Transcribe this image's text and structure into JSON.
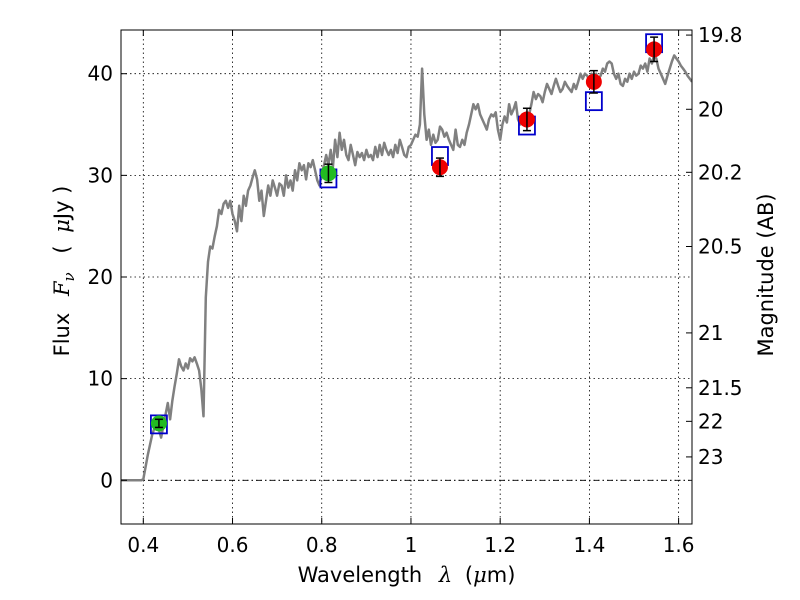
{
  "chart_data": {
    "type": "scatter",
    "xlabel": "Wavelength",
    "xlabel_symbol": "λ",
    "xlabel_unit_open": "(",
    "xlabel_unit_mu": "μ",
    "xlabel_unit_rest": "m)",
    "ylabel": "Flux",
    "ylabel_symbol": "F",
    "ylabel_sub": "ν",
    "ylabel_unit_open": "(",
    "ylabel_unit_mu": "μ",
    "ylabel_unit_rest": "Jy )",
    "y2label": "Magnitude (AB)",
    "xlim": [
      0.35,
      1.63
    ],
    "ylim": [
      -4.3,
      44.3
    ],
    "xticks": [
      {
        "value": 0.4,
        "label": "0.4"
      },
      {
        "value": 0.6,
        "label": "0.6"
      },
      {
        "value": 0.8,
        "label": "0.8"
      },
      {
        "value": 1.0,
        "label": "1"
      },
      {
        "value": 1.2,
        "label": "1.2"
      },
      {
        "value": 1.4,
        "label": "1.4"
      },
      {
        "value": 1.6,
        "label": "1.6"
      }
    ],
    "yticks": [
      {
        "value": 0,
        "label": "0"
      },
      {
        "value": 10,
        "label": "10"
      },
      {
        "value": 20,
        "label": "20"
      },
      {
        "value": 30,
        "label": "30"
      },
      {
        "value": 40,
        "label": "40"
      }
    ],
    "y2ticks": [
      {
        "flux": 43.8,
        "label": "19.8"
      },
      {
        "flux": 36.5,
        "label": "20"
      },
      {
        "flux": 30.3,
        "label": "20.2"
      },
      {
        "flux": 23.0,
        "label": "20.5"
      },
      {
        "flux": 14.5,
        "label": "21"
      },
      {
        "flux": 9.1,
        "label": "21.5"
      },
      {
        "flux": 5.8,
        "label": "22"
      },
      {
        "flux": 2.3,
        "label": "23"
      }
    ],
    "grid": true,
    "zero_line": true,
    "colors": {
      "spectrum": "#808080",
      "model_marker": "#0000cc",
      "obs_green": "#22bb22",
      "obs_red": "#ee0000",
      "errorbar": "#000000"
    },
    "series": [
      {
        "style": "line",
        "points": [
          [
            0.35,
            0
          ],
          [
            0.395,
            0
          ],
          [
            0.4,
            0.1
          ],
          [
            0.41,
            2.5
          ],
          [
            0.42,
            4.5
          ],
          [
            0.43,
            5.8
          ],
          [
            0.44,
            4.2
          ],
          [
            0.45,
            6.5
          ],
          [
            0.455,
            7.6
          ],
          [
            0.46,
            6.0
          ],
          [
            0.465,
            7.8
          ],
          [
            0.47,
            9.2
          ],
          [
            0.475,
            10.5
          ],
          [
            0.48,
            11.9
          ],
          [
            0.485,
            11.2
          ],
          [
            0.49,
            10.8
          ],
          [
            0.495,
            11.5
          ],
          [
            0.5,
            11.0
          ],
          [
            0.505,
            12.0
          ],
          [
            0.51,
            11.7
          ],
          [
            0.515,
            12.1
          ],
          [
            0.52,
            11.5
          ],
          [
            0.525,
            10.8
          ],
          [
            0.53,
            9.0
          ],
          [
            0.535,
            6.3
          ],
          [
            0.54,
            18.0
          ],
          [
            0.545,
            21.5
          ],
          [
            0.55,
            23.0
          ],
          [
            0.555,
            22.8
          ],
          [
            0.56,
            24.0
          ],
          [
            0.565,
            25.0
          ],
          [
            0.57,
            26.6
          ],
          [
            0.575,
            26.2
          ],
          [
            0.58,
            27.2
          ],
          [
            0.585,
            27.5
          ],
          [
            0.59,
            26.8
          ],
          [
            0.595,
            27.5
          ],
          [
            0.6,
            26.2
          ],
          [
            0.605,
            25.5
          ],
          [
            0.61,
            24.5
          ],
          [
            0.615,
            27.0
          ],
          [
            0.62,
            25.5
          ],
          [
            0.625,
            28.0
          ],
          [
            0.63,
            27.0
          ],
          [
            0.635,
            28.5
          ],
          [
            0.64,
            29.0
          ],
          [
            0.645,
            29.8
          ],
          [
            0.65,
            30.5
          ],
          [
            0.655,
            29.6
          ],
          [
            0.66,
            27.5
          ],
          [
            0.665,
            28.5
          ],
          [
            0.67,
            26.0
          ],
          [
            0.675,
            27.5
          ],
          [
            0.68,
            29.0
          ],
          [
            0.685,
            28.0
          ],
          [
            0.69,
            29.5
          ],
          [
            0.695,
            28.8
          ],
          [
            0.7,
            28.0
          ],
          [
            0.705,
            29.2
          ],
          [
            0.71,
            29.0
          ],
          [
            0.715,
            28.0
          ],
          [
            0.72,
            30.0
          ],
          [
            0.725,
            28.8
          ],
          [
            0.73,
            29.5
          ],
          [
            0.735,
            28.5
          ],
          [
            0.74,
            30.5
          ],
          [
            0.745,
            29.5
          ],
          [
            0.75,
            31.2
          ],
          [
            0.755,
            30.5
          ],
          [
            0.76,
            31.0
          ],
          [
            0.765,
            29.6
          ],
          [
            0.77,
            31.2
          ],
          [
            0.775,
            30.8
          ],
          [
            0.78,
            31.5
          ],
          [
            0.785,
            30.5
          ],
          [
            0.79,
            29.5
          ],
          [
            0.795,
            29.0
          ],
          [
            0.8,
            30.2
          ],
          [
            0.805,
            31.0
          ],
          [
            0.81,
            32.0
          ],
          [
            0.815,
            31.0
          ],
          [
            0.82,
            32.5
          ],
          [
            0.825,
            30.8
          ],
          [
            0.83,
            33.5
          ],
          [
            0.835,
            31.8
          ],
          [
            0.84,
            34.2
          ],
          [
            0.845,
            32.5
          ],
          [
            0.85,
            33.5
          ],
          [
            0.855,
            32.0
          ],
          [
            0.86,
            31.5
          ],
          [
            0.865,
            33.0
          ],
          [
            0.87,
            32.0
          ],
          [
            0.875,
            31.0
          ],
          [
            0.88,
            32.3
          ],
          [
            0.885,
            31.8
          ],
          [
            0.89,
            32.2
          ],
          [
            0.895,
            31.5
          ],
          [
            0.9,
            32.5
          ],
          [
            0.905,
            31.8
          ],
          [
            0.91,
            32.0
          ],
          [
            0.915,
            31.5
          ],
          [
            0.92,
            32.8
          ],
          [
            0.925,
            31.8
          ],
          [
            0.93,
            33.0
          ],
          [
            0.935,
            32.0
          ],
          [
            0.94,
            33.2
          ],
          [
            0.945,
            32.5
          ],
          [
            0.95,
            32.0
          ],
          [
            0.955,
            32.5
          ],
          [
            0.96,
            31.8
          ],
          [
            0.965,
            33.0
          ],
          [
            0.97,
            32.2
          ],
          [
            0.975,
            33.5
          ],
          [
            0.98,
            32.8
          ],
          [
            0.985,
            32.0
          ],
          [
            0.99,
            31.8
          ],
          [
            0.995,
            32.8
          ],
          [
            1.0,
            33.0
          ],
          [
            1.005,
            33.5
          ],
          [
            1.01,
            34.0
          ],
          [
            1.015,
            33.8
          ],
          [
            1.02,
            35.0
          ],
          [
            1.025,
            40.5
          ],
          [
            1.03,
            36.0
          ],
          [
            1.035,
            33.5
          ],
          [
            1.04,
            34.5
          ],
          [
            1.045,
            33.0
          ],
          [
            1.05,
            34.0
          ],
          [
            1.055,
            33.2
          ],
          [
            1.06,
            33.5
          ],
          [
            1.065,
            34.8
          ],
          [
            1.07,
            34.5
          ],
          [
            1.075,
            33.8
          ],
          [
            1.08,
            34.2
          ],
          [
            1.085,
            33.5
          ],
          [
            1.09,
            33.0
          ],
          [
            1.095,
            32.5
          ],
          [
            1.1,
            34.5
          ],
          [
            1.105,
            33.0
          ],
          [
            1.11,
            32.8
          ],
          [
            1.115,
            33.5
          ],
          [
            1.12,
            33.0
          ],
          [
            1.125,
            34.2
          ],
          [
            1.13,
            35.0
          ],
          [
            1.135,
            36.0
          ],
          [
            1.14,
            37.0
          ],
          [
            1.145,
            36.5
          ],
          [
            1.15,
            37.0
          ],
          [
            1.155,
            36.0
          ],
          [
            1.16,
            35.5
          ],
          [
            1.165,
            35.0
          ],
          [
            1.17,
            34.5
          ],
          [
            1.175,
            35.5
          ],
          [
            1.18,
            36.0
          ],
          [
            1.185,
            35.8
          ],
          [
            1.19,
            36.2
          ],
          [
            1.195,
            34.5
          ],
          [
            1.2,
            33.5
          ],
          [
            1.205,
            35.0
          ],
          [
            1.21,
            35.8
          ],
          [
            1.215,
            35.2
          ],
          [
            1.22,
            37.0
          ],
          [
            1.225,
            36.0
          ],
          [
            1.23,
            36.5
          ],
          [
            1.235,
            37.2
          ],
          [
            1.24,
            35.5
          ],
          [
            1.245,
            35.0
          ],
          [
            1.25,
            36.0
          ],
          [
            1.255,
            35.2
          ],
          [
            1.26,
            36.2
          ],
          [
            1.265,
            36.0
          ],
          [
            1.27,
            37.0
          ],
          [
            1.275,
            38.2
          ],
          [
            1.28,
            37.5
          ],
          [
            1.285,
            38.0
          ],
          [
            1.29,
            37.8
          ],
          [
            1.295,
            37.2
          ],
          [
            1.3,
            38.2
          ],
          [
            1.305,
            39.0
          ],
          [
            1.31,
            38.5
          ],
          [
            1.315,
            38.0
          ],
          [
            1.32,
            38.8
          ],
          [
            1.325,
            39.5
          ],
          [
            1.33,
            38.8
          ],
          [
            1.335,
            38.2
          ],
          [
            1.34,
            38.5
          ],
          [
            1.345,
            39.2
          ],
          [
            1.35,
            38.8
          ],
          [
            1.355,
            38.5
          ],
          [
            1.36,
            38.2
          ],
          [
            1.365,
            39.0
          ],
          [
            1.37,
            38.5
          ],
          [
            1.375,
            39.2
          ],
          [
            1.38,
            40.0
          ],
          [
            1.385,
            39.5
          ],
          [
            1.39,
            40.0
          ],
          [
            1.395,
            39.8
          ],
          [
            1.4,
            39.3
          ],
          [
            1.405,
            40.0
          ],
          [
            1.41,
            39.5
          ],
          [
            1.415,
            40.0
          ],
          [
            1.42,
            39.5
          ],
          [
            1.425,
            39.8
          ],
          [
            1.43,
            40.5
          ],
          [
            1.435,
            40.2
          ],
          [
            1.44,
            41.0
          ],
          [
            1.445,
            41.2
          ],
          [
            1.45,
            41.0
          ],
          [
            1.455,
            40.0
          ],
          [
            1.46,
            39.5
          ],
          [
            1.465,
            40.0
          ],
          [
            1.47,
            39.0
          ],
          [
            1.475,
            38.8
          ],
          [
            1.48,
            39.5
          ],
          [
            1.485,
            39.2
          ],
          [
            1.49,
            40.0
          ],
          [
            1.495,
            39.5
          ],
          [
            1.5,
            40.2
          ],
          [
            1.505,
            39.8
          ],
          [
            1.51,
            40.0
          ],
          [
            1.515,
            40.8
          ],
          [
            1.52,
            40.5
          ],
          [
            1.525,
            41.0
          ],
          [
            1.53,
            40.2
          ],
          [
            1.535,
            41.5
          ],
          [
            1.54,
            41.0
          ],
          [
            1.545,
            41.8
          ],
          [
            1.55,
            41.5
          ],
          [
            1.555,
            40.5
          ],
          [
            1.56,
            40.0
          ],
          [
            1.565,
            39.5
          ],
          [
            1.57,
            39.0
          ],
          [
            1.575,
            39.8
          ],
          [
            1.58,
            40.5
          ],
          [
            1.585,
            41.2
          ],
          [
            1.59,
            41.8
          ],
          [
            1.595,
            41.5
          ],
          [
            1.6,
            41.2
          ],
          [
            1.605,
            40.8
          ],
          [
            1.61,
            40.5
          ],
          [
            1.615,
            40.2
          ],
          [
            1.62,
            39.8
          ],
          [
            1.625,
            39.5
          ],
          [
            1.63,
            39.2
          ]
        ]
      },
      {
        "style": "open-square",
        "points": [
          [
            0.435,
            5.5
          ],
          [
            0.815,
            29.7
          ],
          [
            1.065,
            31.9
          ],
          [
            1.26,
            34.9
          ],
          [
            1.41,
            37.3
          ],
          [
            1.545,
            43.0
          ]
        ]
      },
      {
        "style": "filled-circle-green",
        "points": [
          {
            "x": 0.435,
            "y": 5.6,
            "err": 0.4
          },
          {
            "x": 0.815,
            "y": 30.2,
            "err": 0.9
          }
        ]
      },
      {
        "style": "filled-circle-red",
        "points": [
          {
            "x": 1.065,
            "y": 30.8,
            "err": 0.9
          },
          {
            "x": 1.26,
            "y": 35.5,
            "err": 1.1
          },
          {
            "x": 1.41,
            "y": 39.2,
            "err": 1.1
          },
          {
            "x": 1.545,
            "y": 42.4,
            "err": 1.2
          }
        ]
      }
    ]
  }
}
